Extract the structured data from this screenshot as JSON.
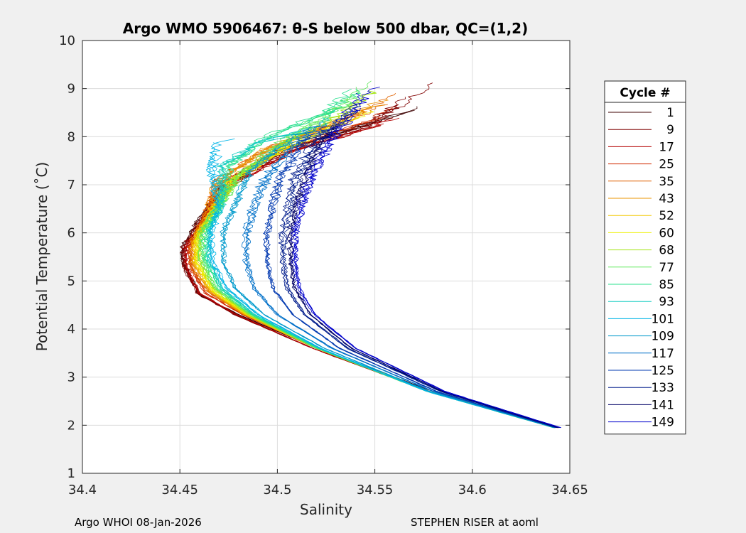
{
  "chart_data": {
    "type": "line",
    "title": "Argo WMO 5906467: θ-S below 500 dbar,  QC=(1,2)",
    "xlabel": "Salinity",
    "ylabel": "Potential Temperature (˚C)",
    "xlim": [
      34.4,
      34.65
    ],
    "ylim": [
      1,
      10
    ],
    "xticks": [
      "34.4",
      "34.45",
      "34.5",
      "34.55",
      "34.6",
      "34.65"
    ],
    "yticks": [
      "1",
      "2",
      "3",
      "4",
      "5",
      "6",
      "7",
      "8",
      "9",
      "10"
    ],
    "grid": true,
    "legend": {
      "title": "Cycle #",
      "placement": "right",
      "entries": [
        "1",
        "9",
        "17",
        "25",
        "35",
        "43",
        "52",
        "60",
        "68",
        "77",
        "85",
        "93",
        "101",
        "109",
        "117",
        "125",
        "133",
        "141",
        "149"
      ]
    },
    "series_colors": [
      "#3d0000",
      "#800000",
      "#b20000",
      "#d12b00",
      "#e06000",
      "#eb9500",
      "#f2c800",
      "#eef000",
      "#a6e61c",
      "#5ee85a",
      "#28e08e",
      "#12ccc0",
      "#00b4e6",
      "#009acc",
      "#0070c8",
      "#0038b0",
      "#001c8c",
      "#000066",
      "#0000cc"
    ],
    "series_anchors": [
      {
        "name": "1",
        "points": [
          [
            34.644,
            1.95
          ],
          [
            34.58,
            2.7
          ],
          [
            34.52,
            3.6
          ],
          [
            34.48,
            4.3
          ],
          [
            34.46,
            4.7
          ],
          [
            34.451,
            5.4
          ],
          [
            34.451,
            5.7
          ],
          [
            34.458,
            6.2
          ],
          [
            34.472,
            7.0
          ],
          [
            34.5,
            7.7
          ],
          [
            34.54,
            8.2
          ],
          [
            34.58,
            8.7
          ]
        ]
      },
      {
        "name": "9",
        "points": [
          [
            34.644,
            1.95
          ],
          [
            34.578,
            2.7
          ],
          [
            34.518,
            3.6
          ],
          [
            34.478,
            4.3
          ],
          [
            34.459,
            4.75
          ],
          [
            34.452,
            5.3
          ],
          [
            34.452,
            5.7
          ],
          [
            34.46,
            6.2
          ],
          [
            34.475,
            7.0
          ],
          [
            34.505,
            7.7
          ],
          [
            34.545,
            8.2
          ],
          [
            34.582,
            9.2
          ]
        ]
      },
      {
        "name": "17",
        "points": [
          [
            34.643,
            1.95
          ],
          [
            34.578,
            2.7
          ],
          [
            34.518,
            3.6
          ],
          [
            34.479,
            4.3
          ],
          [
            34.46,
            4.75
          ],
          [
            34.453,
            5.3
          ],
          [
            34.453,
            5.7
          ],
          [
            34.461,
            6.2
          ],
          [
            34.476,
            7.0
          ],
          [
            34.508,
            7.7
          ],
          [
            34.548,
            8.2
          ],
          [
            34.573,
            8.6
          ]
        ]
      },
      {
        "name": "25",
        "points": [
          [
            34.642,
            1.95
          ],
          [
            34.578,
            2.7
          ],
          [
            34.52,
            3.6
          ],
          [
            34.482,
            4.3
          ],
          [
            34.463,
            4.75
          ],
          [
            34.455,
            5.3
          ],
          [
            34.455,
            5.75
          ],
          [
            34.462,
            6.3
          ],
          [
            34.47,
            7.0
          ],
          [
            34.5,
            7.7
          ],
          [
            34.545,
            8.3
          ],
          [
            34.568,
            8.9
          ]
        ]
      },
      {
        "name": "35",
        "points": [
          [
            34.642,
            1.95
          ],
          [
            34.578,
            2.7
          ],
          [
            34.52,
            3.6
          ],
          [
            34.483,
            4.3
          ],
          [
            34.464,
            4.8
          ],
          [
            34.456,
            5.3
          ],
          [
            34.456,
            5.8
          ],
          [
            34.463,
            6.3
          ],
          [
            34.47,
            7.1
          ],
          [
            34.498,
            7.8
          ],
          [
            34.54,
            8.4
          ],
          [
            34.565,
            8.95
          ]
        ]
      },
      {
        "name": "43",
        "points": [
          [
            34.642,
            1.95
          ],
          [
            34.578,
            2.7
          ],
          [
            34.52,
            3.6
          ],
          [
            34.483,
            4.3
          ],
          [
            34.465,
            4.8
          ],
          [
            34.457,
            5.35
          ],
          [
            34.457,
            5.85
          ],
          [
            34.465,
            6.4
          ],
          [
            34.468,
            7.0
          ],
          [
            34.492,
            7.7
          ],
          [
            34.535,
            8.4
          ],
          [
            34.565,
            8.9
          ]
        ]
      },
      {
        "name": "52",
        "points": [
          [
            34.642,
            1.95
          ],
          [
            34.578,
            2.7
          ],
          [
            34.52,
            3.6
          ],
          [
            34.484,
            4.3
          ],
          [
            34.466,
            4.8
          ],
          [
            34.458,
            5.4
          ],
          [
            34.458,
            5.9
          ],
          [
            34.466,
            6.4
          ],
          [
            34.476,
            7.1
          ],
          [
            34.505,
            7.8
          ],
          [
            34.54,
            8.4
          ],
          [
            34.56,
            8.8
          ]
        ]
      },
      {
        "name": "60",
        "points": [
          [
            34.642,
            1.95
          ],
          [
            34.578,
            2.7
          ],
          [
            34.521,
            3.6
          ],
          [
            34.485,
            4.3
          ],
          [
            34.467,
            4.8
          ],
          [
            34.459,
            5.4
          ],
          [
            34.459,
            5.9
          ],
          [
            34.467,
            6.4
          ],
          [
            34.478,
            7.1
          ],
          [
            34.507,
            7.8
          ],
          [
            34.542,
            8.4
          ],
          [
            34.56,
            8.75
          ]
        ]
      },
      {
        "name": "68",
        "points": [
          [
            34.642,
            1.95
          ],
          [
            34.577,
            2.7
          ],
          [
            34.52,
            3.6
          ],
          [
            34.485,
            4.3
          ],
          [
            34.467,
            4.85
          ],
          [
            34.46,
            5.45
          ],
          [
            34.46,
            5.95
          ],
          [
            34.468,
            6.5
          ],
          [
            34.48,
            7.2
          ],
          [
            34.505,
            7.9
          ],
          [
            34.535,
            8.5
          ],
          [
            34.55,
            9.0
          ]
        ]
      },
      {
        "name": "77",
        "points": [
          [
            34.642,
            1.95
          ],
          [
            34.577,
            2.7
          ],
          [
            34.52,
            3.6
          ],
          [
            34.486,
            4.3
          ],
          [
            34.468,
            4.85
          ],
          [
            34.461,
            5.45
          ],
          [
            34.461,
            6.0
          ],
          [
            34.469,
            6.5
          ],
          [
            34.482,
            7.3
          ],
          [
            34.51,
            8.1
          ],
          [
            34.535,
            8.7
          ],
          [
            34.551,
            9.45
          ]
        ]
      },
      {
        "name": "85",
        "points": [
          [
            34.642,
            1.95
          ],
          [
            34.577,
            2.7
          ],
          [
            34.521,
            3.6
          ],
          [
            34.487,
            4.3
          ],
          [
            34.47,
            4.85
          ],
          [
            34.463,
            5.45
          ],
          [
            34.463,
            6.0
          ],
          [
            34.47,
            6.6
          ],
          [
            34.475,
            7.4
          ],
          [
            34.495,
            8.0
          ],
          [
            34.525,
            8.5
          ],
          [
            34.545,
            9.1
          ]
        ]
      },
      {
        "name": "93",
        "points": [
          [
            34.642,
            1.95
          ],
          [
            34.577,
            2.7
          ],
          [
            34.521,
            3.6
          ],
          [
            34.488,
            4.3
          ],
          [
            34.471,
            4.85
          ],
          [
            34.464,
            5.45
          ],
          [
            34.464,
            6.0
          ],
          [
            34.471,
            6.6
          ],
          [
            34.47,
            7.4
          ],
          [
            34.49,
            7.9
          ],
          [
            34.52,
            8.2
          ],
          [
            34.53,
            8.6
          ]
        ]
      },
      {
        "name": "101",
        "points": [
          [
            34.642,
            1.95
          ],
          [
            34.577,
            2.7
          ],
          [
            34.522,
            3.6
          ],
          [
            34.49,
            4.3
          ],
          [
            34.474,
            4.85
          ],
          [
            34.467,
            5.4
          ],
          [
            34.466,
            6.0
          ],
          [
            34.47,
            6.6
          ],
          [
            34.466,
            7.3
          ],
          [
            34.47,
            7.9
          ],
          [
            34.49,
            8.0
          ]
        ]
      },
      {
        "name": "109",
        "points": [
          [
            34.642,
            1.95
          ],
          [
            34.578,
            2.7
          ],
          [
            34.524,
            3.6
          ],
          [
            34.493,
            4.3
          ],
          [
            34.478,
            4.85
          ],
          [
            34.472,
            5.4
          ],
          [
            34.472,
            6.0
          ],
          [
            34.478,
            6.6
          ],
          [
            34.485,
            7.3
          ],
          [
            34.505,
            7.9
          ],
          [
            34.525,
            8.4
          ]
        ]
      },
      {
        "name": "117",
        "points": [
          [
            34.643,
            1.95
          ],
          [
            34.58,
            2.7
          ],
          [
            34.528,
            3.6
          ],
          [
            34.5,
            4.3
          ],
          [
            34.488,
            4.85
          ],
          [
            34.484,
            5.4
          ],
          [
            34.484,
            6.0
          ],
          [
            34.488,
            6.6
          ],
          [
            34.495,
            7.2
          ],
          [
            34.51,
            7.9
          ],
          [
            34.53,
            8.5
          ]
        ]
      },
      {
        "name": "125",
        "points": [
          [
            34.643,
            1.95
          ],
          [
            34.582,
            2.7
          ],
          [
            34.532,
            3.6
          ],
          [
            34.508,
            4.3
          ],
          [
            34.498,
            4.85
          ],
          [
            34.495,
            5.4
          ],
          [
            34.495,
            6.0
          ],
          [
            34.498,
            6.6
          ],
          [
            34.503,
            7.2
          ],
          [
            34.515,
            7.9
          ],
          [
            34.54,
            8.6
          ]
        ]
      },
      {
        "name": "133",
        "points": [
          [
            34.644,
            1.95
          ],
          [
            34.584,
            2.7
          ],
          [
            34.536,
            3.6
          ],
          [
            34.514,
            4.3
          ],
          [
            34.505,
            4.85
          ],
          [
            34.503,
            5.4
          ],
          [
            34.503,
            6.0
          ],
          [
            34.506,
            6.6
          ],
          [
            34.51,
            7.2
          ],
          [
            34.52,
            7.9
          ],
          [
            34.54,
            8.5
          ]
        ]
      },
      {
        "name": "141",
        "points": [
          [
            34.644,
            1.95
          ],
          [
            34.585,
            2.7
          ],
          [
            34.538,
            3.6
          ],
          [
            34.517,
            4.3
          ],
          [
            34.509,
            4.85
          ],
          [
            34.507,
            5.4
          ],
          [
            34.507,
            6.0
          ],
          [
            34.51,
            6.6
          ],
          [
            34.515,
            7.2
          ],
          [
            34.523,
            7.9
          ],
          [
            34.54,
            8.6
          ]
        ]
      },
      {
        "name": "149",
        "points": [
          [
            34.645,
            1.95
          ],
          [
            34.586,
            2.7
          ],
          [
            34.54,
            3.6
          ],
          [
            34.519,
            4.3
          ],
          [
            34.511,
            4.85
          ],
          [
            34.509,
            5.4
          ],
          [
            34.509,
            6.0
          ],
          [
            34.512,
            6.6
          ],
          [
            34.518,
            7.2
          ],
          [
            34.526,
            7.9
          ],
          [
            34.55,
            9.15
          ]
        ]
      }
    ]
  },
  "footer": {
    "left": "Argo WHOI 08-Jan-2026",
    "right": "STEPHEN RISER at aoml"
  }
}
